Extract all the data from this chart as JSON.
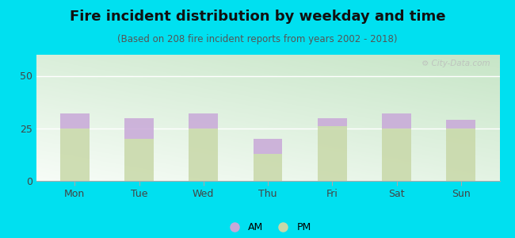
{
  "title": "Fire incident distribution by weekday and time",
  "subtitle": "(Based on 208 fire incident reports from years 2002 - 2018)",
  "categories": [
    "Mon",
    "Tue",
    "Wed",
    "Thu",
    "Fri",
    "Sat",
    "Sun"
  ],
  "pm_values": [
    25,
    20,
    25,
    13,
    26,
    25,
    25
  ],
  "am_values": [
    7,
    10,
    7,
    7,
    4,
    7,
    4
  ],
  "am_color": "#c8a8d8",
  "pm_color": "#c8d8a8",
  "background_outer": "#00e0f0",
  "ylim": [
    0,
    60
  ],
  "yticks": [
    0,
    25,
    50
  ],
  "bar_width": 0.45,
  "title_fontsize": 13,
  "subtitle_fontsize": 8.5,
  "legend_fontsize": 9,
  "tick_fontsize": 9,
  "watermark_text": "⚙ City-Data.com"
}
